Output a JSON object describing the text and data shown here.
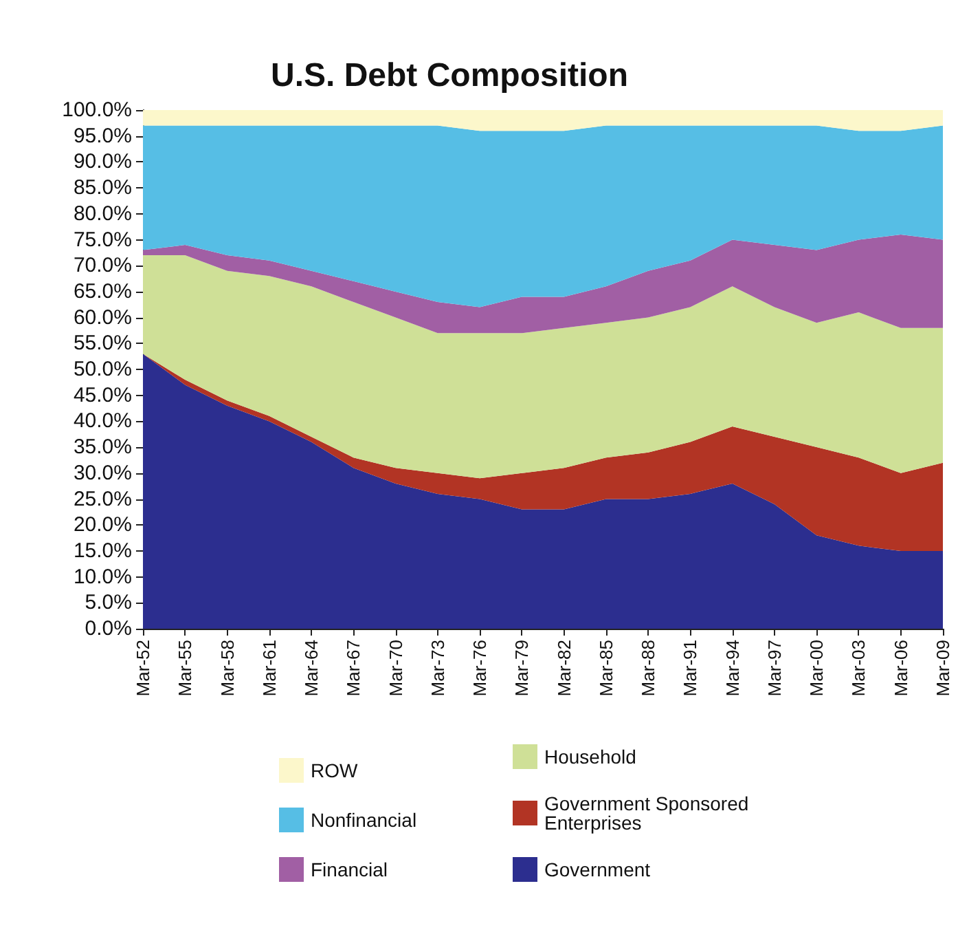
{
  "chart_data": {
    "type": "area",
    "title": "U.S. Debt Composition",
    "stacked": true,
    "grid": false,
    "legend": "bottom",
    "categories": [
      "Mar-52",
      "Mar-55",
      "Mar-58",
      "Mar-61",
      "Mar-64",
      "Mar-67",
      "Mar-70",
      "Mar-73",
      "Mar-76",
      "Mar-79",
      "Mar-82",
      "Mar-85",
      "Mar-88",
      "Mar-91",
      "Mar-94",
      "Mar-97",
      "Mar-00",
      "Mar-03",
      "Mar-06",
      "Mar-09"
    ],
    "ylim": [
      0,
      100
    ],
    "yticks": [
      {
        "value": 0,
        "label": "0.0%"
      },
      {
        "value": 5,
        "label": "5.0%"
      },
      {
        "value": 10,
        "label": "10.0%"
      },
      {
        "value": 15,
        "label": "15.0%"
      },
      {
        "value": 20,
        "label": "20.0%"
      },
      {
        "value": 25,
        "label": "25.0%"
      },
      {
        "value": 30,
        "label": "30.0%"
      },
      {
        "value": 35,
        "label": "35.0%"
      },
      {
        "value": 40,
        "label": "40.0%"
      },
      {
        "value": 45,
        "label": "45.0%"
      },
      {
        "value": 50,
        "label": "50.0%"
      },
      {
        "value": 55,
        "label": "55.0%"
      },
      {
        "value": 60,
        "label": "60.0%"
      },
      {
        "value": 65,
        "label": "65.0%"
      },
      {
        "value": 70,
        "label": "70.0%"
      },
      {
        "value": 75,
        "label": "75.0%"
      },
      {
        "value": 80,
        "label": "80.0%"
      },
      {
        "value": 85,
        "label": "85.0%"
      },
      {
        "value": 90,
        "label": "90.0%"
      },
      {
        "value": 95,
        "label": "95.0%"
      },
      {
        "value": 100,
        "label": "100.0%"
      }
    ],
    "series": [
      {
        "name": "Government",
        "color": "#2c2e8f",
        "values": [
          53,
          47,
          43,
          40,
          36,
          31,
          28,
          26,
          25,
          23,
          23,
          25,
          25,
          26,
          28,
          24,
          18,
          16,
          15,
          15
        ]
      },
      {
        "name": "Government Sponsored Enterprises",
        "color": "#b23424",
        "values": [
          0,
          1,
          1,
          1,
          1,
          2,
          3,
          4,
          4,
          7,
          8,
          8,
          9,
          10,
          11,
          13,
          17,
          17,
          15,
          17
        ]
      },
      {
        "name": "Household",
        "color": "#cfe097",
        "values": [
          19,
          24,
          25,
          27,
          29,
          30,
          29,
          27,
          28,
          27,
          27,
          26,
          26,
          26,
          27,
          25,
          24,
          28,
          28,
          26
        ]
      },
      {
        "name": "Financial",
        "color": "#a15fa4",
        "values": [
          1,
          2,
          3,
          3,
          3,
          4,
          5,
          6,
          5,
          7,
          6,
          7,
          9,
          9,
          9,
          12,
          14,
          14,
          18,
          17
        ]
      },
      {
        "name": "Nonfinancial",
        "color": "#56bee5",
        "values": [
          24,
          23,
          25,
          26,
          28,
          30,
          32,
          34,
          34,
          32,
          32,
          31,
          28,
          26,
          22,
          23,
          24,
          21,
          20,
          22
        ]
      },
      {
        "name": "ROW",
        "color": "#fcf7cb",
        "values": [
          3,
          3,
          3,
          3,
          3,
          3,
          3,
          3,
          4,
          4,
          4,
          3,
          3,
          3,
          3,
          3,
          3,
          4,
          4,
          3
        ]
      }
    ]
  }
}
